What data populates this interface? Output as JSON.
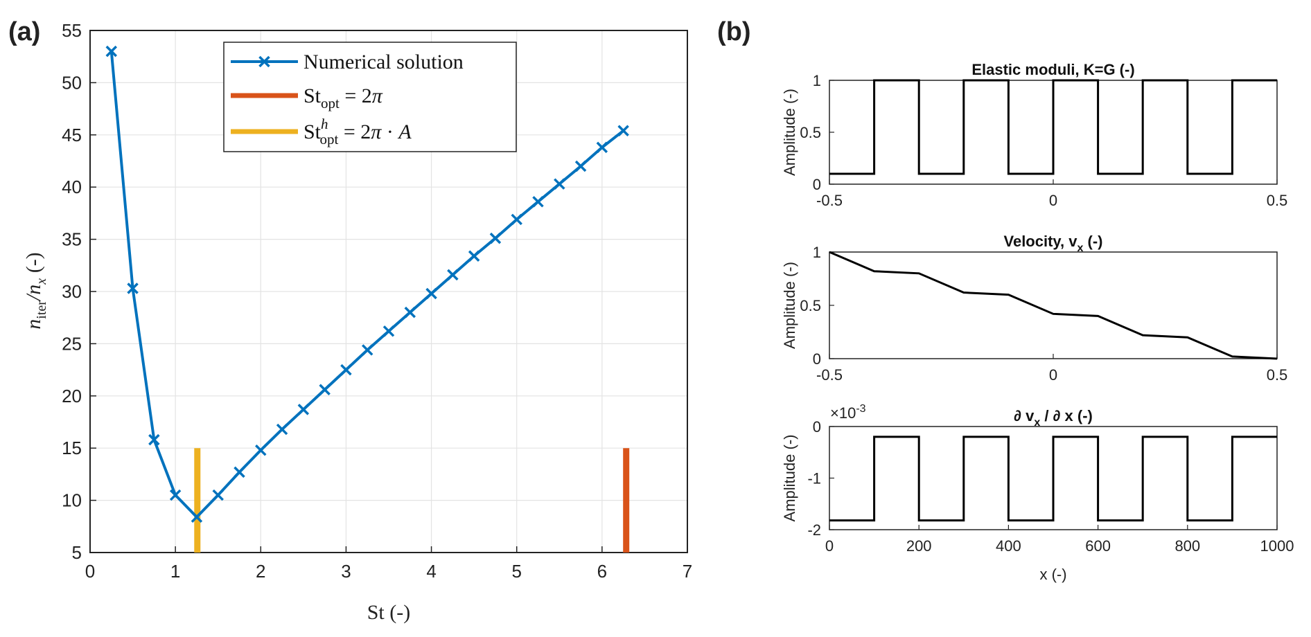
{
  "panel_a": {
    "label": "(a)",
    "chart_data": {
      "type": "line",
      "xlabel": "St (-)",
      "ylabel": "n_iter / n_x (-)",
      "xlim": [
        0,
        7
      ],
      "ylim": [
        5,
        55
      ],
      "xticks": [
        "0",
        "1",
        "2",
        "3",
        "4",
        "5",
        "6",
        "7"
      ],
      "yticks": [
        "5",
        "10",
        "15",
        "20",
        "25",
        "30",
        "35",
        "40",
        "45",
        "50",
        "55"
      ],
      "grid": true,
      "legend_position": "top-center",
      "legend": [
        "Numerical solution",
        "St_opt = 2π",
        "St^h_opt = 2π · A"
      ],
      "series": [
        {
          "name": "Numerical solution",
          "color": "#0072BD",
          "marker": "x",
          "x": [
            0.25,
            0.5,
            0.75,
            1.0,
            1.25,
            1.5,
            1.75,
            2.0,
            2.25,
            2.5,
            2.75,
            3.0,
            3.25,
            3.5,
            3.75,
            4.0,
            4.25,
            4.5,
            4.75,
            5.0,
            5.25,
            5.5,
            5.75,
            6.0,
            6.25
          ],
          "y": [
            53.0,
            30.3,
            15.8,
            10.5,
            8.4,
            10.5,
            12.7,
            14.8,
            16.8,
            18.7,
            20.6,
            22.5,
            24.4,
            26.2,
            28.0,
            29.8,
            31.6,
            33.4,
            35.1,
            36.9,
            38.6,
            40.3,
            42.0,
            43.8,
            45.4
          ]
        },
        {
          "name": "St_opt = 2π",
          "color": "#D95319",
          "x": [
            6.283,
            6.283
          ],
          "y": [
            5,
            15
          ]
        },
        {
          "name": "St^h_opt = 2π · A",
          "color": "#EDB120",
          "x": [
            1.257,
            1.257
          ],
          "y": [
            5,
            15
          ]
        }
      ]
    }
  },
  "panel_b": {
    "label": "(b)",
    "chart_data": [
      {
        "type": "line",
        "title": "Elastic moduli, K=G (-)",
        "ylabel": "Amplitude (-)",
        "xlim": [
          -0.5,
          0.5
        ],
        "ylim": [
          0,
          1
        ],
        "xticks": [
          "-0.5",
          "0",
          "0.5"
        ],
        "yticks": [
          "0",
          "0.5",
          "1"
        ],
        "series": [
          {
            "color": "#000000",
            "x": [
              -0.5,
              -0.4,
              -0.4,
              -0.3,
              -0.3,
              -0.2,
              -0.2,
              -0.1,
              -0.1,
              0.0,
              0.0,
              0.1,
              0.1,
              0.2,
              0.2,
              0.3,
              0.3,
              0.4,
              0.4,
              0.5
            ],
            "y": [
              0.1,
              0.1,
              1.0,
              1.0,
              0.1,
              0.1,
              1.0,
              1.0,
              0.1,
              0.1,
              1.0,
              1.0,
              0.1,
              0.1,
              1.0,
              1.0,
              0.1,
              0.1,
              1.0,
              1.0
            ]
          }
        ]
      },
      {
        "type": "line",
        "title": "Velocity, v_x (-)",
        "ylabel": "Amplitude (-)",
        "xlim": [
          -0.5,
          0.5
        ],
        "ylim": [
          0,
          1
        ],
        "xticks": [
          "-0.5",
          "0",
          "0.5"
        ],
        "yticks": [
          "0",
          "0.5",
          "1"
        ],
        "series": [
          {
            "color": "#000000",
            "x": [
              -0.5,
              -0.4,
              -0.3,
              -0.2,
              -0.1,
              0.0,
              0.1,
              0.2,
              0.3,
              0.4,
              0.5
            ],
            "y": [
              1.0,
              0.82,
              0.8,
              0.62,
              0.6,
              0.42,
              0.4,
              0.22,
              0.2,
              0.02,
              0.0
            ]
          }
        ]
      },
      {
        "type": "line",
        "title": "∂ v_x / ∂ x (-)",
        "ylabel": "Amplitude (-)",
        "xlabel": "x (-)",
        "exponent_label": "×10^-3",
        "xlim": [
          0,
          1000
        ],
        "ylim": [
          -2,
          0
        ],
        "xticks": [
          "0",
          "200",
          "400",
          "600",
          "800",
          "1000"
        ],
        "yticks": [
          "-2",
          "-1",
          "0"
        ],
        "series": [
          {
            "color": "#000000",
            "x": [
              0,
              100,
              100,
              200,
              200,
              300,
              300,
              400,
              400,
              500,
              500,
              600,
              600,
              700,
              700,
              800,
              800,
              900,
              900,
              1000
            ],
            "y": [
              -1.82,
              -1.82,
              -0.2,
              -0.2,
              -1.82,
              -1.82,
              -0.2,
              -0.2,
              -1.82,
              -1.82,
              -0.2,
              -0.2,
              -1.82,
              -1.82,
              -0.2,
              -0.2,
              -1.82,
              -1.82,
              -0.2,
              -0.2
            ]
          }
        ]
      }
    ]
  }
}
